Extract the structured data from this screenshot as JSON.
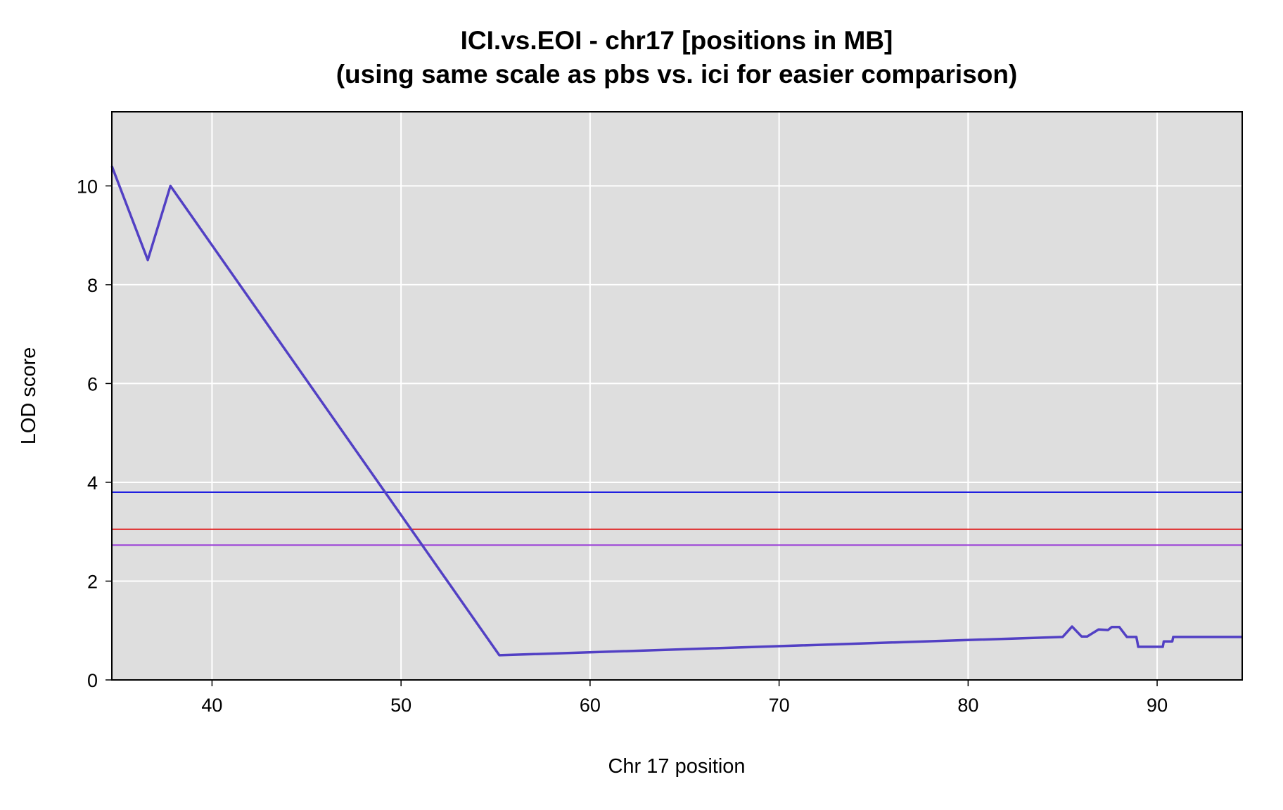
{
  "chart_data": {
    "type": "line",
    "title": "ICI.vs.EOI - chr17 [positions in MB]",
    "subtitle": "(using same scale as pbs vs. ici for easier comparison)",
    "xlabel": "Chr 17 position",
    "ylabel": "LOD score",
    "xlim": [
      34.7,
      94.5
    ],
    "ylim": [
      0,
      11.5
    ],
    "xticks": [
      40,
      50,
      60,
      70,
      80,
      90
    ],
    "yticks": [
      0,
      2,
      4,
      6,
      8,
      10
    ],
    "grid": true,
    "colors": {
      "plot_background": "#dedede",
      "grid": "#ffffff",
      "series_line": "#5240c4",
      "threshold_blue": "#1f1fe0",
      "threshold_red": "#e02020",
      "threshold_purple": "#9a3fd6",
      "axis": "#000000"
    },
    "series": [
      {
        "x": [
          34.7,
          36.6,
          37.8,
          55.2,
          85.0,
          85.5,
          86.0,
          86.3,
          86.9,
          87.4,
          87.6,
          88.0,
          88.4,
          88.9,
          88.95,
          89.0,
          90.3,
          90.35,
          90.8,
          90.85,
          94.5
        ],
        "y": [
          10.4,
          8.5,
          10.0,
          0.5,
          0.87,
          1.08,
          0.88,
          0.88,
          1.02,
          1.01,
          1.07,
          1.07,
          0.87,
          0.87,
          0.77,
          0.67,
          0.67,
          0.78,
          0.78,
          0.87,
          0.87
        ]
      }
    ],
    "thresholds": [
      {
        "color": "blue",
        "y": 3.8
      },
      {
        "color": "red",
        "y": 3.05
      },
      {
        "color": "purple",
        "y": 2.73
      }
    ]
  }
}
